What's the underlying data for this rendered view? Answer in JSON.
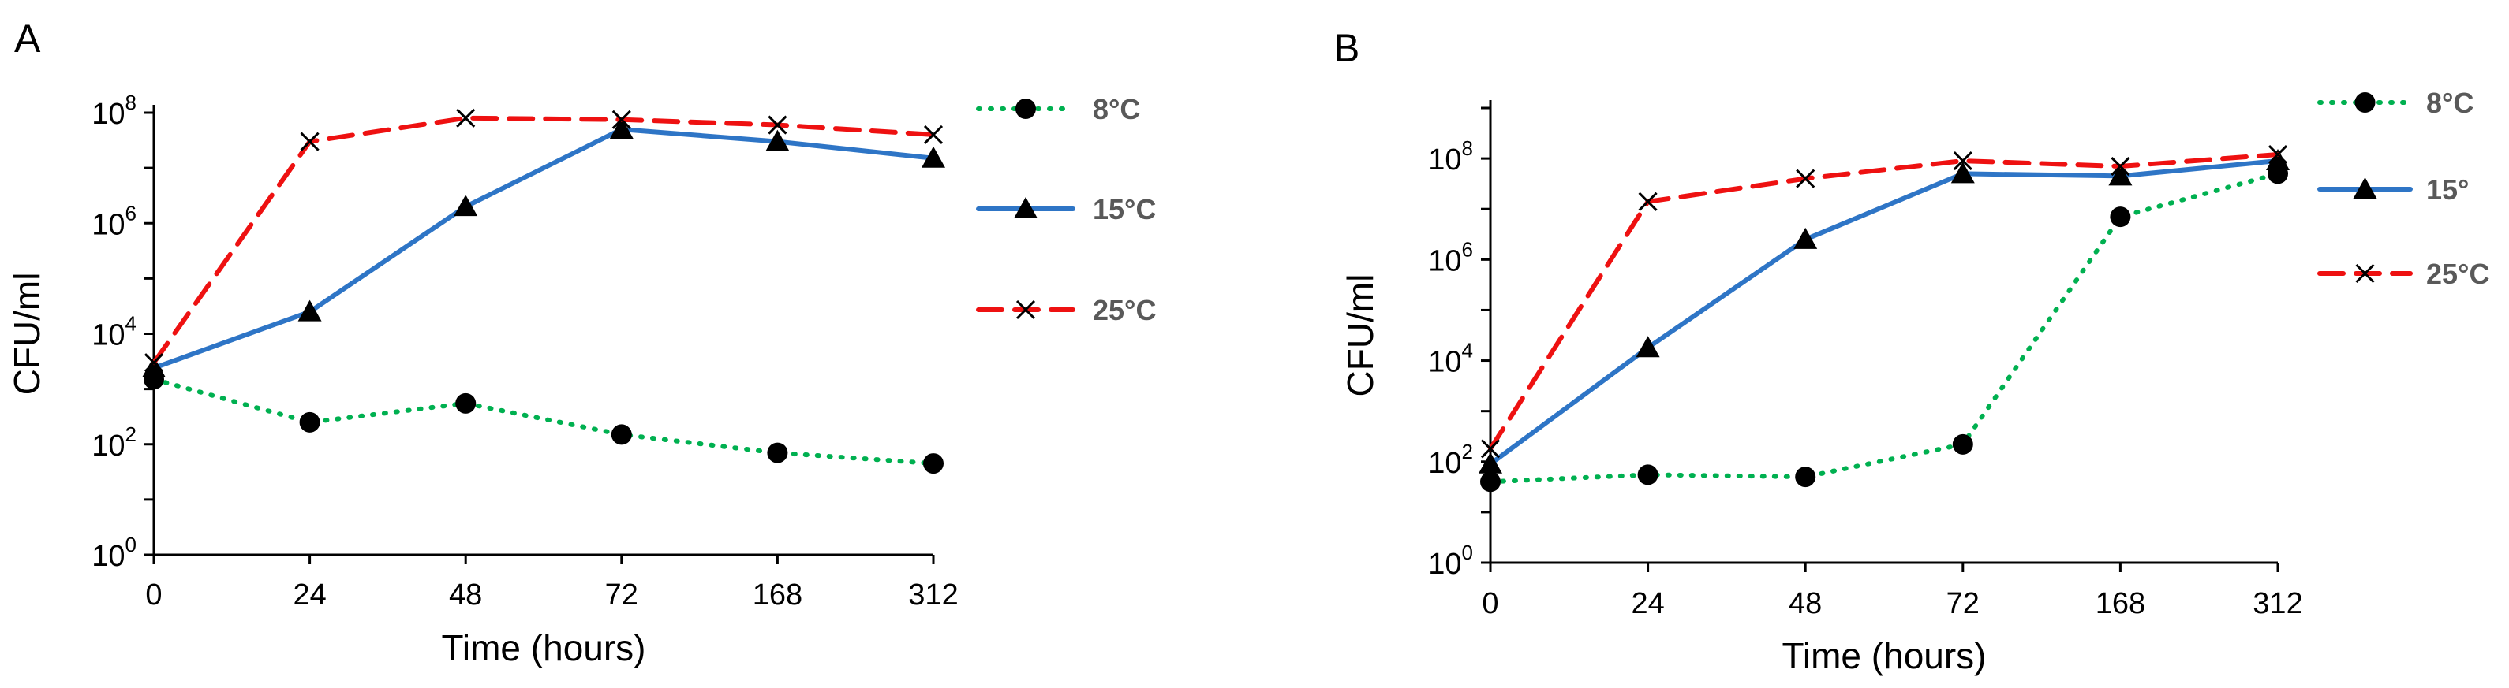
{
  "chart_data": [
    {
      "panel_label": "A",
      "type": "line",
      "ylabel": "CFU/ml",
      "xlabel": "Time (hours)",
      "yscale": "log10",
      "ylim_exp": [
        0,
        8
      ],
      "y_ticks": [
        {
          "base": "10",
          "exp": "0"
        },
        {
          "base": "10",
          "exp": "2"
        },
        {
          "base": "10",
          "exp": "4"
        },
        {
          "base": "10",
          "exp": "6"
        },
        {
          "base": "10",
          "exp": "8"
        }
      ],
      "categories": [
        "0",
        "24",
        "48",
        "72",
        "168",
        "312"
      ],
      "series": [
        {
          "name": "8°C",
          "color": "#00b050",
          "style": "dotted",
          "marker": "circle",
          "values": [
            1500,
            250,
            550,
            150,
            70,
            45
          ]
        },
        {
          "name": "15°C",
          "color": "#2e75c6",
          "style": "solid",
          "marker": "triangle",
          "values": [
            2400,
            25000,
            2000000,
            50000000,
            30000000,
            15000000
          ]
        },
        {
          "name": "25°C",
          "color": "#ee1111",
          "style": "dashed",
          "marker": "x",
          "values": [
            3000,
            30000000,
            80000000,
            75000000,
            60000000,
            40000000
          ]
        }
      ]
    },
    {
      "panel_label": "B",
      "type": "line",
      "ylabel": "CFU/ml",
      "xlabel": "Time (hours)",
      "yscale": "log10",
      "ylim_exp": [
        0,
        9
      ],
      "y_ticks": [
        {
          "base": "10",
          "exp": "0"
        },
        {
          "base": "10",
          "exp": "2"
        },
        {
          "base": "10",
          "exp": "4"
        },
        {
          "base": "10",
          "exp": "6"
        },
        {
          "base": "10",
          "exp": "8"
        }
      ],
      "categories": [
        "0",
        "24",
        "48",
        "72",
        "168",
        "312"
      ],
      "series": [
        {
          "name": "8°C",
          "color": "#00b050",
          "style": "dotted",
          "marker": "circle",
          "values": [
            40,
            55,
            50,
            220,
            7000000,
            50000000
          ]
        },
        {
          "name": "15°",
          "color": "#2e75c6",
          "style": "solid",
          "marker": "triangle",
          "values": [
            90,
            18000,
            2500000,
            50000000,
            45000000,
            90000000
          ]
        },
        {
          "name": "25°C",
          "color": "#ee1111",
          "style": "dashed",
          "marker": "x",
          "values": [
            180,
            14000000,
            40000000,
            90000000,
            70000000,
            120000000
          ]
        }
      ]
    }
  ]
}
